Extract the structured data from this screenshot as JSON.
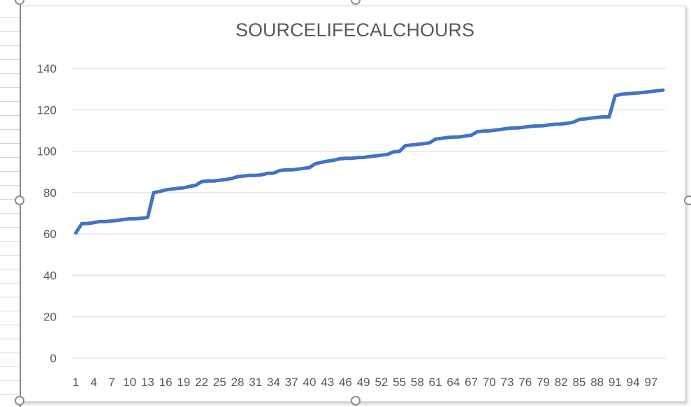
{
  "chart_data": {
    "type": "line",
    "title": "SOURCELIFECALCHOURS",
    "xlabel": "",
    "ylabel": "",
    "ylim": [
      0,
      140
    ],
    "yticks": [
      0,
      20,
      40,
      60,
      80,
      100,
      120,
      140
    ],
    "grid": true,
    "legend": "none",
    "line_color": "#4472c4",
    "gridline_color": "#d9d9d9",
    "x_tick_labels": [
      "1",
      "4",
      "7",
      "10",
      "13",
      "16",
      "19",
      "22",
      "25",
      "28",
      "31",
      "34",
      "37",
      "40",
      "43",
      "46",
      "49",
      "52",
      "55",
      "58",
      "61",
      "64",
      "67",
      "70",
      "73",
      "76",
      "79",
      "82",
      "85",
      "88",
      "91",
      "94",
      "97"
    ],
    "x": [
      1,
      2,
      3,
      4,
      5,
      6,
      7,
      8,
      9,
      10,
      11,
      12,
      13,
      14,
      15,
      16,
      17,
      18,
      19,
      20,
      21,
      22,
      23,
      24,
      25,
      26,
      27,
      28,
      29,
      30,
      31,
      32,
      33,
      34,
      35,
      36,
      37,
      38,
      39,
      40,
      41,
      42,
      43,
      44,
      45,
      46,
      47,
      48,
      49,
      50,
      51,
      52,
      53,
      54,
      55,
      56,
      57,
      58,
      59,
      60,
      61,
      62,
      63,
      64,
      65,
      66,
      67,
      68,
      69,
      70,
      71,
      72,
      73,
      74,
      75,
      76,
      77,
      78,
      79,
      80,
      81,
      82,
      83,
      84,
      85,
      86,
      87,
      88,
      89,
      90,
      91,
      92,
      93,
      94,
      95,
      96,
      97,
      98,
      99
    ],
    "series": [
      {
        "values": [
          60.5,
          65,
          65,
          65.5,
          66,
          66,
          66.3,
          66.6,
          67,
          67.3,
          67.4,
          67.6,
          68,
          80,
          80.5,
          81.3,
          81.7,
          82,
          82.3,
          83,
          83.5,
          85.3,
          85.6,
          85.6,
          86,
          86.3,
          86.8,
          87.7,
          88,
          88.3,
          88.3,
          88.6,
          89.3,
          89.4,
          90.6,
          91,
          91,
          91.3,
          91.7,
          92.1,
          94,
          94.6,
          95.2,
          95.6,
          96.3,
          96.6,
          96.6,
          96.9,
          97,
          97.4,
          97.7,
          98.1,
          98.4,
          99.7,
          99.9,
          102.7,
          103,
          103.3,
          103.6,
          104,
          105.8,
          106.2,
          106.6,
          106.8,
          106.9,
          107.3,
          107.7,
          109.4,
          109.7,
          109.8,
          110.2,
          110.5,
          111,
          111.2,
          111.3,
          111.7,
          112,
          112.2,
          112.3,
          112.7,
          113,
          113.1,
          113.5,
          114,
          115.3,
          115.6,
          116,
          116.3,
          116.6,
          116.6,
          126.8,
          127.5,
          127.8,
          128,
          128.2,
          128.5,
          128.8,
          129.2,
          129.5
        ]
      }
    ]
  }
}
